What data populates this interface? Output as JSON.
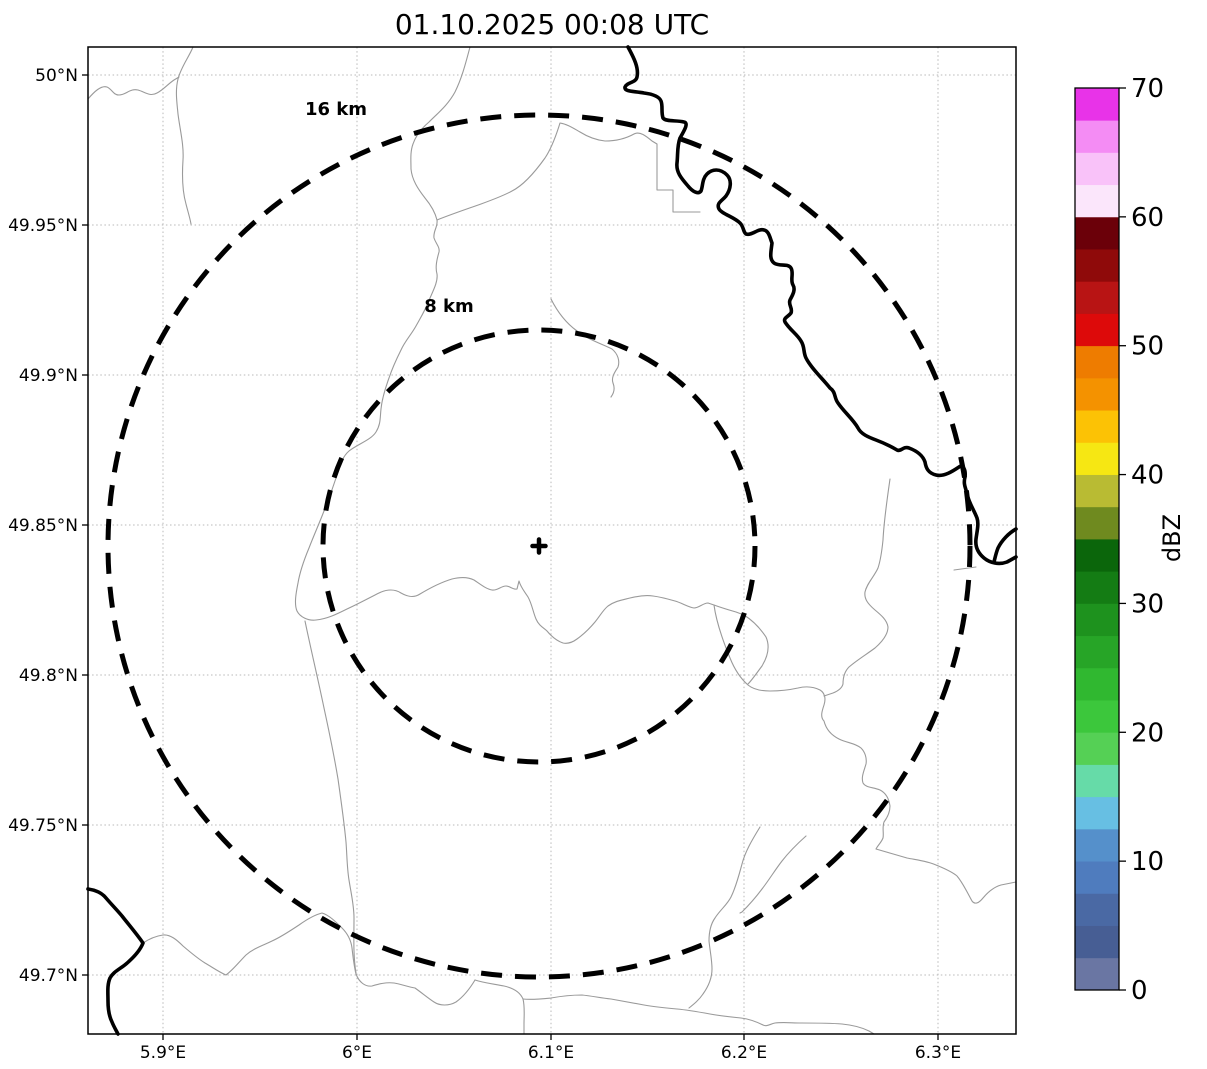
{
  "title": "01.10.2025 00:08 UTC",
  "map": {
    "x_axis": {
      "tick_labels": [
        "5.9°E",
        "6°E",
        "6.1°E",
        "6.2°E",
        "6.3°E"
      ]
    },
    "y_axis": {
      "tick_labels": [
        "50°N",
        "49.95°N",
        "49.9°N",
        "49.85°N",
        "49.8°N",
        "49.75°N",
        "49.7°N"
      ]
    },
    "range_rings": [
      {
        "label": "16 km",
        "radius_km": 16
      },
      {
        "label": "8 km",
        "radius_km": 8
      }
    ],
    "center_marker": "+"
  },
  "colorbar": {
    "label": "dBZ",
    "tick_values": [
      "0",
      "10",
      "20",
      "30",
      "40",
      "50",
      "60",
      "70"
    ],
    "min": 0,
    "max": 70,
    "segment_step_dbz": 2.5,
    "segment_colors_bottom_to_top": [
      "#6a76a3",
      "#475e94",
      "#4a69a4",
      "#4f7cbe",
      "#5590cb",
      "#67bfe3",
      "#66dba8",
      "#55d055",
      "#3cc73c",
      "#30b830",
      "#27a527",
      "#1e921e",
      "#147c14",
      "#0b660b",
      "#6f8a1f",
      "#b9bb33",
      "#f6e713",
      "#fcc205",
      "#f49200",
      "#ee7c00",
      "#dd0a0a",
      "#b81414",
      "#8f0a0a",
      "#6b0009",
      "#fbe6fb",
      "#f9c2f9",
      "#f48cf4",
      "#e833e8"
    ]
  },
  "chart_data": {
    "type": "map",
    "subtype": "weather-radar-reflectivity-ppi",
    "title": "01.10.2025 00:08 UTC",
    "lon_tick_values_deg_e": [
      5.9,
      6.0,
      6.1,
      6.2,
      6.3
    ],
    "lat_tick_values_deg_n": [
      50.0,
      49.95,
      49.9,
      49.85,
      49.8,
      49.75,
      49.7
    ],
    "range_rings_km": [
      8,
      16
    ],
    "reflectivity_scale": {
      "unit": "dBZ",
      "min": 0,
      "max": 70,
      "step": 2.5
    },
    "radar_echoes": "none visible (field is blank at this timestamp)",
    "grid": "dotted graticule at every labeled tick",
    "legend_position": "right-side vertical colorbar"
  }
}
